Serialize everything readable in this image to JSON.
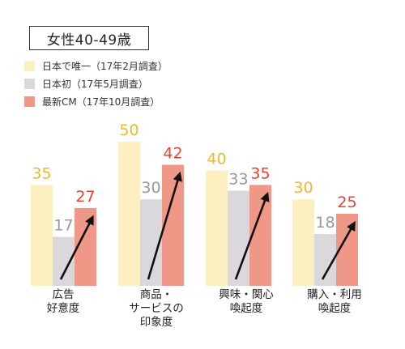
{
  "chart_data": {
    "type": "bar",
    "title": "女性40-49歳",
    "categories": [
      [
        "広告",
        "好意度"
      ],
      [
        "商品・",
        "サービスの",
        "印象度"
      ],
      [
        "興味・関心",
        "喚起度"
      ],
      [
        "購入・利用",
        "喚起度"
      ]
    ],
    "series": [
      {
        "name": "日本で唯一（17年2月調査）",
        "values": [
          35,
          50,
          40,
          30
        ],
        "color": "#fdf0c0",
        "label_color": "#f0b830"
      },
      {
        "name": "日本初（17年5月調査）",
        "values": [
          17,
          30,
          33,
          18
        ],
        "color": "#dad8dd",
        "label_color": "#999999"
      },
      {
        "name": "最新CM（17年10月調査）",
        "values": [
          27,
          42,
          35,
          25
        ],
        "color": "#f09888",
        "label_color": "#e8422e"
      }
    ],
    "ylim": [
      0,
      50
    ],
    "grid": false,
    "legend_position": "top-left",
    "arrows": "diagonal arrow from the 日本初 bar rising to the 最新CM bar in each group"
  }
}
